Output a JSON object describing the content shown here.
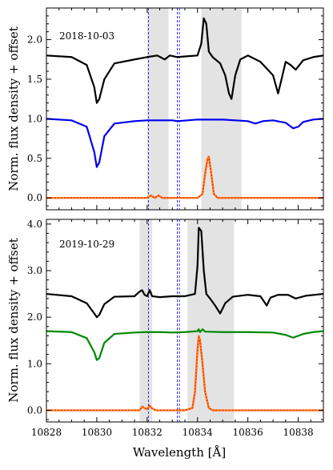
{
  "chart_data": [
    {
      "type": "line",
      "annotation": "2018-10-03",
      "ylabel": "Norm. flux density + offset",
      "xlim": [
        10828,
        10839
      ],
      "ylim": [
        -0.15,
        2.4
      ],
      "yticks": [
        0.0,
        0.5,
        1.0,
        1.5,
        2.0
      ],
      "ytick_labels": [
        "0.0",
        "0.5",
        "1.0",
        "1.5",
        "2.0"
      ],
      "shaded_regions": [
        [
          10832.0,
          10832.85
        ],
        [
          10834.15,
          10835.75
        ]
      ],
      "vlines": [
        10832.05,
        10833.2,
        10833.28
      ],
      "series": [
        {
          "color": "#000000",
          "dash": "",
          "x": [
            10828.0,
            10829.0,
            10829.6,
            10829.9,
            10830.0,
            10830.1,
            10830.3,
            10830.7,
            10831.5,
            10832.0,
            10832.4,
            10832.7,
            10832.9,
            10833.2,
            10833.6,
            10834.0,
            10834.15,
            10834.25,
            10834.35,
            10834.45,
            10834.6,
            10834.9,
            10835.1,
            10835.25,
            10835.35,
            10835.5,
            10835.7,
            10836.0,
            10836.5,
            10837.0,
            10837.2,
            10837.3,
            10837.5,
            10837.7,
            10837.9,
            10838.2,
            10838.6,
            10839.0
          ],
          "y": [
            1.8,
            1.78,
            1.68,
            1.4,
            1.2,
            1.25,
            1.5,
            1.7,
            1.75,
            1.78,
            1.8,
            1.75,
            1.8,
            1.78,
            1.79,
            1.8,
            1.95,
            2.27,
            2.2,
            1.85,
            1.78,
            1.7,
            1.55,
            1.32,
            1.25,
            1.55,
            1.75,
            1.8,
            1.72,
            1.55,
            1.32,
            1.45,
            1.72,
            1.68,
            1.62,
            1.74,
            1.78,
            1.8
          ]
        },
        {
          "color": "#0000ee",
          "dash": "",
          "x": [
            10828.0,
            10829.0,
            10829.6,
            10829.9,
            10830.0,
            10830.1,
            10830.3,
            10830.7,
            10831.5,
            10832.0,
            10832.5,
            10833.0,
            10833.2,
            10833.6,
            10834.0,
            10835.0,
            10835.5,
            10836.0,
            10836.3,
            10836.6,
            10837.0,
            10837.5,
            10837.8,
            10838.0,
            10838.2,
            10838.6,
            10839.0
          ],
          "y": [
            1.0,
            0.98,
            0.9,
            0.58,
            0.39,
            0.45,
            0.78,
            0.94,
            0.97,
            0.98,
            0.98,
            0.98,
            0.97,
            0.98,
            0.99,
            0.99,
            0.98,
            0.97,
            0.94,
            0.97,
            0.98,
            0.95,
            0.88,
            0.9,
            0.96,
            0.99,
            1.0
          ]
        },
        {
          "color": "#ff3300",
          "dash": "",
          "x": [
            10828.0,
            10832.0,
            10832.15,
            10832.3,
            10832.45,
            10832.6,
            10832.8,
            10834.0,
            10834.2,
            10834.3,
            10834.4,
            10834.45,
            10834.55,
            10834.65,
            10834.8,
            10835.0,
            10839.0
          ],
          "y": [
            0.0,
            0.0,
            0.03,
            0.0,
            0.03,
            0.0,
            0.0,
            0.0,
            0.05,
            0.3,
            0.5,
            0.52,
            0.3,
            0.05,
            0.0,
            0.0,
            0.0
          ]
        },
        {
          "color": "#ff9900",
          "dash": "2,2",
          "x": [
            10828.0,
            10832.0,
            10832.15,
            10832.3,
            10832.45,
            10832.6,
            10832.8,
            10834.0,
            10834.2,
            10834.3,
            10834.4,
            10834.45,
            10834.55,
            10834.65,
            10834.8,
            10835.0,
            10839.0
          ],
          "y": [
            0.0,
            0.0,
            0.03,
            0.0,
            0.03,
            0.0,
            0.0,
            0.0,
            0.05,
            0.3,
            0.5,
            0.52,
            0.3,
            0.05,
            0.0,
            0.0,
            0.0
          ]
        }
      ]
    },
    {
      "type": "line",
      "annotation": "2019-10-29",
      "xlabel": "Wavelength [Å]",
      "ylabel": "Norm. flux density + offset",
      "xlim": [
        10828,
        10839
      ],
      "ylim": [
        -0.25,
        4.1
      ],
      "xticks": [
        10828,
        10830,
        10832,
        10834,
        10836,
        10838
      ],
      "xtick_labels": [
        "10828",
        "10830",
        "10832",
        "10834",
        "10836",
        "10838"
      ],
      "yticks": [
        0.0,
        1.0,
        2.0,
        3.0,
        4.0
      ],
      "ytick_labels": [
        "0.0",
        "1.0",
        "2.0",
        "3.0",
        "4.0"
      ],
      "shaded_regions": [
        [
          10831.7,
          10832.2
        ],
        [
          10833.6,
          10835.45
        ]
      ],
      "vlines": [
        10832.05,
        10833.2,
        10833.28
      ],
      "series": [
        {
          "color": "#000000",
          "dash": "",
          "x": [
            10828.0,
            10829.0,
            10829.6,
            10829.9,
            10830.0,
            10830.1,
            10830.3,
            10830.7,
            10831.5,
            10831.7,
            10831.8,
            10831.9,
            10832.0,
            10832.1,
            10832.2,
            10832.5,
            10833.0,
            10833.5,
            10833.9,
            10834.0,
            10834.05,
            10834.15,
            10834.25,
            10834.35,
            10834.5,
            10834.7,
            10834.9,
            10835.1,
            10835.4,
            10836.0,
            10836.5,
            10836.75,
            10836.9,
            10837.2,
            10837.6,
            10837.9,
            10838.3,
            10839.0
          ],
          "y": [
            2.5,
            2.45,
            2.3,
            2.08,
            2.0,
            2.05,
            2.28,
            2.44,
            2.45,
            2.55,
            2.58,
            2.48,
            2.45,
            2.58,
            2.45,
            2.43,
            2.45,
            2.45,
            2.5,
            3.1,
            3.92,
            3.85,
            3.0,
            2.5,
            2.4,
            2.25,
            2.08,
            2.3,
            2.44,
            2.48,
            2.45,
            2.25,
            2.42,
            2.48,
            2.48,
            2.4,
            2.46,
            2.5
          ]
        },
        {
          "color": "#008800",
          "dash": "",
          "x": [
            10828.0,
            10829.0,
            10829.6,
            10829.9,
            10830.0,
            10830.1,
            10830.3,
            10830.7,
            10831.5,
            10832.0,
            10832.5,
            10833.0,
            10833.5,
            10834.0,
            10834.05,
            10834.1,
            10834.2,
            10834.3,
            10835.0,
            10836.0,
            10837.0,
            10837.5,
            10837.8,
            10838.2,
            10838.6,
            10839.0
          ],
          "y": [
            1.7,
            1.68,
            1.55,
            1.25,
            1.08,
            1.12,
            1.45,
            1.64,
            1.67,
            1.68,
            1.68,
            1.67,
            1.68,
            1.7,
            1.74,
            1.68,
            1.74,
            1.69,
            1.68,
            1.68,
            1.67,
            1.62,
            1.56,
            1.64,
            1.68,
            1.7
          ]
        },
        {
          "color": "#ff3300",
          "dash": "",
          "x": [
            10828.0,
            10831.7,
            10831.8,
            10831.9,
            10832.0,
            10832.1,
            10832.2,
            10832.35,
            10833.5,
            10833.8,
            10833.9,
            10834.0,
            10834.05,
            10834.1,
            10834.2,
            10834.3,
            10834.45,
            10834.6,
            10839.0
          ],
          "y": [
            0.0,
            0.0,
            0.08,
            0.05,
            0.02,
            0.1,
            0.04,
            0.0,
            0.0,
            0.05,
            0.4,
            1.3,
            1.6,
            1.5,
            1.0,
            0.4,
            0.05,
            0.0,
            0.0
          ]
        },
        {
          "color": "#ff9900",
          "dash": "2,2",
          "x": [
            10828.0,
            10831.7,
            10831.8,
            10831.9,
            10832.0,
            10832.1,
            10832.2,
            10832.35,
            10833.5,
            10833.8,
            10833.9,
            10834.0,
            10834.05,
            10834.1,
            10834.2,
            10834.3,
            10834.45,
            10834.6,
            10839.0
          ],
          "y": [
            0.0,
            0.0,
            0.08,
            0.05,
            0.02,
            0.1,
            0.04,
            0.0,
            0.0,
            0.05,
            0.4,
            1.3,
            1.6,
            1.5,
            1.0,
            0.4,
            0.05,
            0.0,
            0.0
          ]
        }
      ]
    }
  ]
}
